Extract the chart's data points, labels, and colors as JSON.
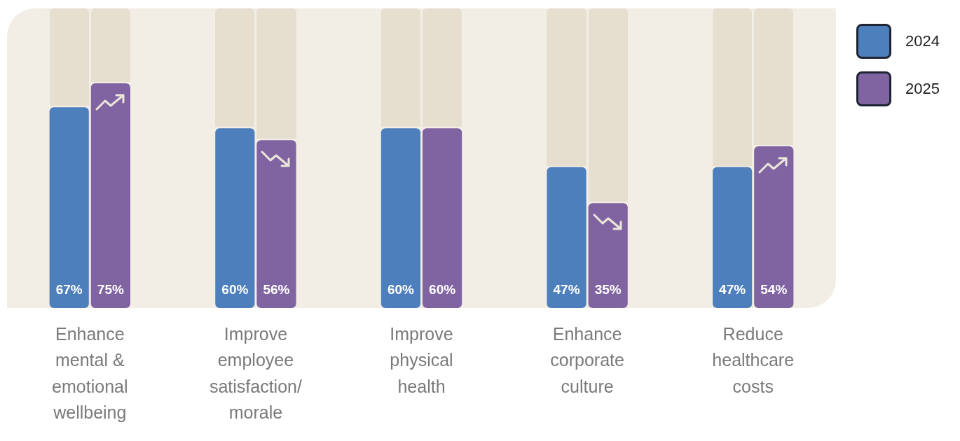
{
  "chart_data": {
    "type": "bar",
    "categories": [
      "Enhance mental & emotional wellbeing",
      "Improve employee satisfaction/morale",
      "Improve physical health",
      "Enhance corporate culture",
      "Reduce healthcare costs"
    ],
    "series": [
      {
        "name": "2024",
        "color": "#4d7fbd",
        "values": [
          67,
          60,
          60,
          47,
          47
        ],
        "value_labels": [
          "67%",
          "60%",
          "60%",
          "47%",
          "47%"
        ]
      },
      {
        "name": "2025",
        "color": "#8064a2",
        "values": [
          75,
          56,
          60,
          35,
          54
        ],
        "value_labels": [
          "75%",
          "56%",
          "60%",
          "35%",
          "54%"
        ]
      }
    ],
    "ylim": [
      0,
      100
    ],
    "tick_labels": "x",
    "grid": false,
    "legend": "top right"
  }
}
